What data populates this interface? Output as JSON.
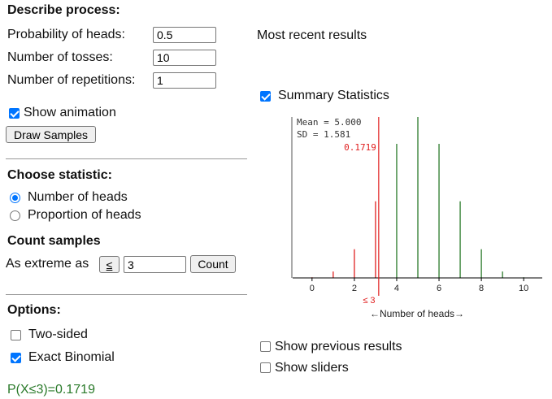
{
  "describe": {
    "heading": "Describe process:",
    "prob_label": "Probability of heads:",
    "prob_value": "0.5",
    "tosses_label": "Number of tosses:",
    "tosses_value": "10",
    "reps_label": "Number of repetitions:",
    "reps_value": "1",
    "show_animation_label": "Show animation",
    "show_animation_checked": true,
    "draw_button": "Draw Samples"
  },
  "statistic": {
    "heading": "Choose statistic:",
    "options": [
      {
        "label": "Number of heads",
        "selected": true
      },
      {
        "label": "Proportion of heads",
        "selected": false
      }
    ]
  },
  "count": {
    "heading": "Count samples",
    "as_extreme_label": "As extreme as",
    "operator": "≤",
    "value": "3",
    "count_button": "Count"
  },
  "options": {
    "heading": "Options:",
    "two_sided_label": "Two-sided",
    "two_sided_checked": false,
    "exact_binomial_label": "Exact Binomial",
    "exact_binomial_checked": true
  },
  "result_text": "P(X≤3)=0.1719",
  "right": {
    "recent_label": "Most recent results",
    "summary_label": "Summary Statistics",
    "summary_checked": true,
    "show_previous_label": "Show previous results",
    "show_previous_checked": false,
    "show_sliders_label": "Show sliders",
    "show_sliders_checked": false
  },
  "colors": {
    "red": "#e02020",
    "green": "#2a7a2a",
    "result_green": "#2a7a2a",
    "accent": "#0075ff"
  },
  "chart_data": {
    "type": "bar",
    "xlabel": "←Number of heads→",
    "x": [
      0,
      1,
      2,
      3,
      4,
      5,
      6,
      7,
      8,
      9,
      10
    ],
    "values": [
      0.001,
      0.0098,
      0.0439,
      0.1172,
      0.2051,
      0.2461,
      0.2051,
      0.1172,
      0.0439,
      0.0098,
      0.001
    ],
    "xticks": [
      "0",
      "2",
      "4",
      "6",
      "8",
      "10"
    ],
    "xtick_values": [
      0,
      2,
      4,
      6,
      8,
      10
    ],
    "xlim": [
      -0.8,
      10.8
    ],
    "ylim": [
      0,
      0.2461
    ],
    "cutoff": 3,
    "cutoff_label": "≤ 3",
    "mean_text": "Mean = 5.000",
    "sd_text": "SD = 1.581",
    "tail_prob_text": "0.1719"
  }
}
